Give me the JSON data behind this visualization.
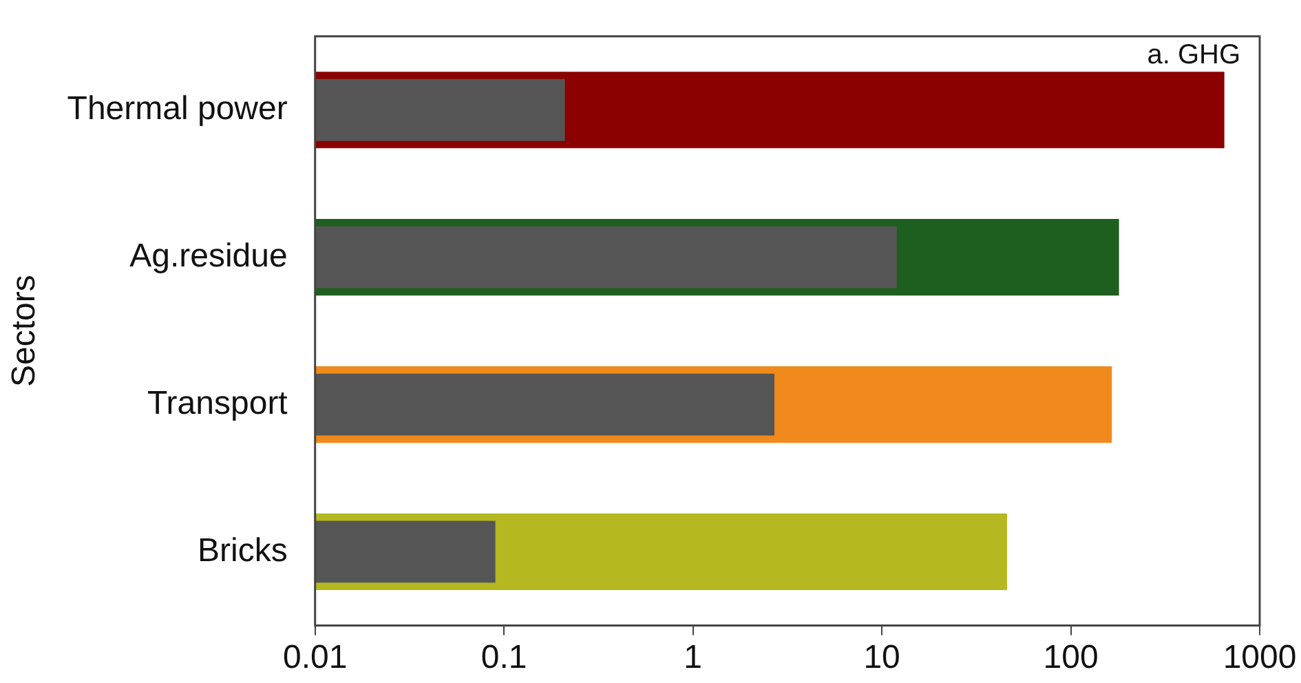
{
  "chart_data": {
    "type": "bar",
    "orientation": "horizontal",
    "log": "x",
    "categories": [
      "Thermal power",
      "Ag.residue",
      "Transport",
      "Bricks"
    ],
    "series": [
      {
        "color": "#555555",
        "values": [
          0.21,
          12,
          2.7,
          0.09
        ]
      },
      {
        "colors": [
          "#8b0000",
          "#1e5e1e",
          "#f08a1c",
          "#b5b820"
        ],
        "values": [
          650,
          180,
          165,
          46
        ]
      }
    ],
    "xlim": [
      0.01,
      1000
    ],
    "xticks": [
      0.01,
      0.1,
      1,
      10,
      100,
      1000
    ],
    "ylabel": "Sectors",
    "annotations": [
      "a. GHG"
    ],
    "grid": false,
    "legend": false
  }
}
